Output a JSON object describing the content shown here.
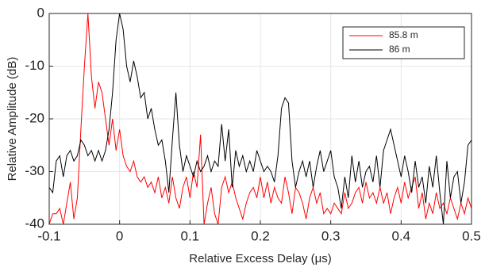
{
  "chart_data": {
    "type": "line",
    "x_label": "Relative Excess Delay (μs)",
    "y_label": "Relative Amplitude (dB)",
    "x": [
      -0.1,
      -0.095,
      -0.09,
      -0.085,
      -0.08,
      -0.075,
      -0.07,
      -0.065,
      -0.06,
      -0.055,
      -0.05,
      -0.045,
      -0.04,
      -0.035,
      -0.03,
      -0.025,
      -0.02,
      -0.015,
      -0.01,
      -0.005,
      0,
      0.005,
      0.01,
      0.015,
      0.02,
      0.025,
      0.03,
      0.035,
      0.04,
      0.045,
      0.05,
      0.055,
      0.06,
      0.065,
      0.07,
      0.075,
      0.08,
      0.085,
      0.09,
      0.095,
      0.1,
      0.105,
      0.11,
      0.115,
      0.12,
      0.125,
      0.13,
      0.135,
      0.14,
      0.145,
      0.15,
      0.155,
      0.16,
      0.165,
      0.17,
      0.175,
      0.18,
      0.185,
      0.19,
      0.195,
      0.2,
      0.205,
      0.21,
      0.215,
      0.22,
      0.225,
      0.23,
      0.235,
      0.24,
      0.245,
      0.25,
      0.255,
      0.26,
      0.265,
      0.27,
      0.275,
      0.28,
      0.285,
      0.29,
      0.295,
      0.3,
      0.305,
      0.31,
      0.315,
      0.32,
      0.325,
      0.33,
      0.335,
      0.34,
      0.345,
      0.35,
      0.355,
      0.36,
      0.365,
      0.37,
      0.375,
      0.38,
      0.385,
      0.39,
      0.395,
      0.4,
      0.405,
      0.41,
      0.415,
      0.42,
      0.425,
      0.43,
      0.435,
      0.44,
      0.445,
      0.45,
      0.455,
      0.46,
      0.465,
      0.47,
      0.475,
      0.48,
      0.485,
      0.49,
      0.495,
      0.5
    ],
    "series": [
      {
        "name": "85.8 m",
        "color": "#ff0000",
        "values": [
          -40,
          -38,
          -38,
          -37,
          -40,
          -36,
          -32,
          -39,
          -35,
          -22,
          -10,
          0,
          -12,
          -18,
          -13,
          -15,
          -20,
          -25,
          -20,
          -26,
          -22,
          -27,
          -29,
          -30,
          -28,
          -31,
          -32,
          -31,
          -33,
          -32,
          -34,
          -31,
          -35,
          -33,
          -36,
          -31,
          -35,
          -37,
          -33,
          -31,
          -35,
          -30,
          -33,
          -23,
          -40,
          -36,
          -33,
          -38,
          -40,
          -33,
          -31,
          -34,
          -32,
          -35,
          -37,
          -39,
          -36,
          -34,
          -33,
          -35,
          -31,
          -35,
          -32,
          -36,
          -33,
          -35,
          -36,
          -31,
          -34,
          -38,
          -33,
          -34,
          -36,
          -39,
          -35,
          -33,
          -36,
          -34,
          -38,
          -37,
          -38,
          -36,
          -37,
          -38,
          -34,
          -37,
          -36,
          -34,
          -33,
          -36,
          -32,
          -35,
          -34,
          -36,
          -33,
          -36,
          -34,
          -38,
          -35,
          -33,
          -36,
          -32,
          -35,
          -33,
          -31,
          -37,
          -34,
          -39,
          -36,
          -38,
          -34,
          -37,
          -36,
          -38,
          -35,
          -37,
          -39,
          -36,
          -38,
          -35,
          -37
        ]
      },
      {
        "name": "86 m",
        "color": "#000000",
        "values": [
          -33,
          -34,
          -28,
          -27,
          -31,
          -27,
          -26,
          -28,
          -27,
          -24,
          -25,
          -27,
          -26,
          -28,
          -26,
          -28,
          -26,
          -22,
          -15,
          -5,
          0,
          -3,
          -10,
          -13,
          -9,
          -12,
          -16,
          -15,
          -20,
          -18,
          -22,
          -25,
          -24,
          -28,
          -34,
          -24,
          -15,
          -25,
          -30,
          -27,
          -29,
          -31,
          -28,
          -30,
          -29,
          -27,
          -30,
          -28,
          -29,
          -21,
          -28,
          -22,
          -33,
          -26,
          -29,
          -27,
          -30,
          -28,
          -30,
          -26,
          -28,
          -30,
          -29,
          -30,
          -32,
          -27,
          -18,
          -16,
          -17,
          -28,
          -33,
          -30,
          -28,
          -31,
          -28,
          -33,
          -29,
          -26,
          -30,
          -28,
          -26,
          -31,
          -33,
          -37,
          -31,
          -35,
          -27,
          -32,
          -28,
          -33,
          -30,
          -29,
          -32,
          -27,
          -33,
          -26,
          -24,
          -22,
          -25,
          -28,
          -31,
          -27,
          -30,
          -34,
          -28,
          -33,
          -31,
          -36,
          -29,
          -33,
          -27,
          -34,
          -40,
          -28,
          -35,
          -31,
          -30,
          -36,
          -32,
          -25,
          -24
        ]
      }
    ],
    "xlim": [
      -0.1,
      0.5
    ],
    "xticks": [
      -0.1,
      0,
      0.1,
      0.2,
      0.3,
      0.4,
      0.5
    ],
    "ylim": [
      -40,
      0
    ],
    "yticks": [
      -40,
      -30,
      -20,
      -10,
      0
    ],
    "grid": true,
    "legend": "northeast"
  }
}
